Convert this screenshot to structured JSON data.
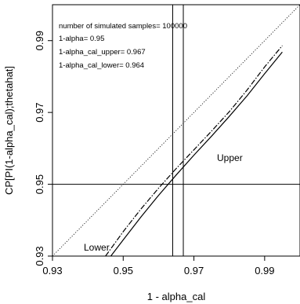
{
  "chart_data": {
    "type": "line",
    "title": "",
    "xlabel": "1 - alpha_cal",
    "ylabel": "CP[PI(1-alpha_cal);thetahat]",
    "xlim": [
      0.93,
      1.0
    ],
    "ylim": [
      0.93,
      1.0
    ],
    "x_ticks": [
      "0.93",
      "0.95",
      "0.97",
      "0.99"
    ],
    "y_ticks": [
      "0.93",
      "0.95",
      "0.97",
      "0.99"
    ],
    "grid": false,
    "annotations": [
      "number of simulated samples= 100000",
      "1-alpha= 0.95",
      "1-alpha_cal_upper= 0.967",
      "1-alpha_cal_lower= 0.964"
    ],
    "curve_labels": {
      "upper": "Upper",
      "lower": "Lower"
    },
    "reference_lines": {
      "hline_y": 0.95,
      "vline_x": [
        0.964,
        0.967
      ],
      "diagonal": [
        [
          0.93,
          0.93
        ],
        [
          1.0,
          1.0
        ]
      ]
    },
    "series": [
      {
        "style": "dot-dash",
        "x": [
          0.945,
          0.95,
          0.955,
          0.96,
          0.965,
          0.97,
          0.975,
          0.98,
          0.985,
          0.99,
          0.995
        ],
        "y": [
          0.93,
          0.9368,
          0.9431,
          0.9489,
          0.9544,
          0.9596,
          0.9648,
          0.9702,
          0.9762,
          0.9827,
          0.9886
        ]
      },
      {
        "style": "solid",
        "x": [
          0.9465,
          0.95,
          0.955,
          0.96,
          0.965,
          0.97,
          0.975,
          0.98,
          0.985,
          0.99,
          0.995
        ],
        "y": [
          0.93,
          0.9345,
          0.9409,
          0.9469,
          0.9526,
          0.9581,
          0.9634,
          0.9689,
          0.9746,
          0.9808,
          0.9868
        ]
      }
    ]
  }
}
